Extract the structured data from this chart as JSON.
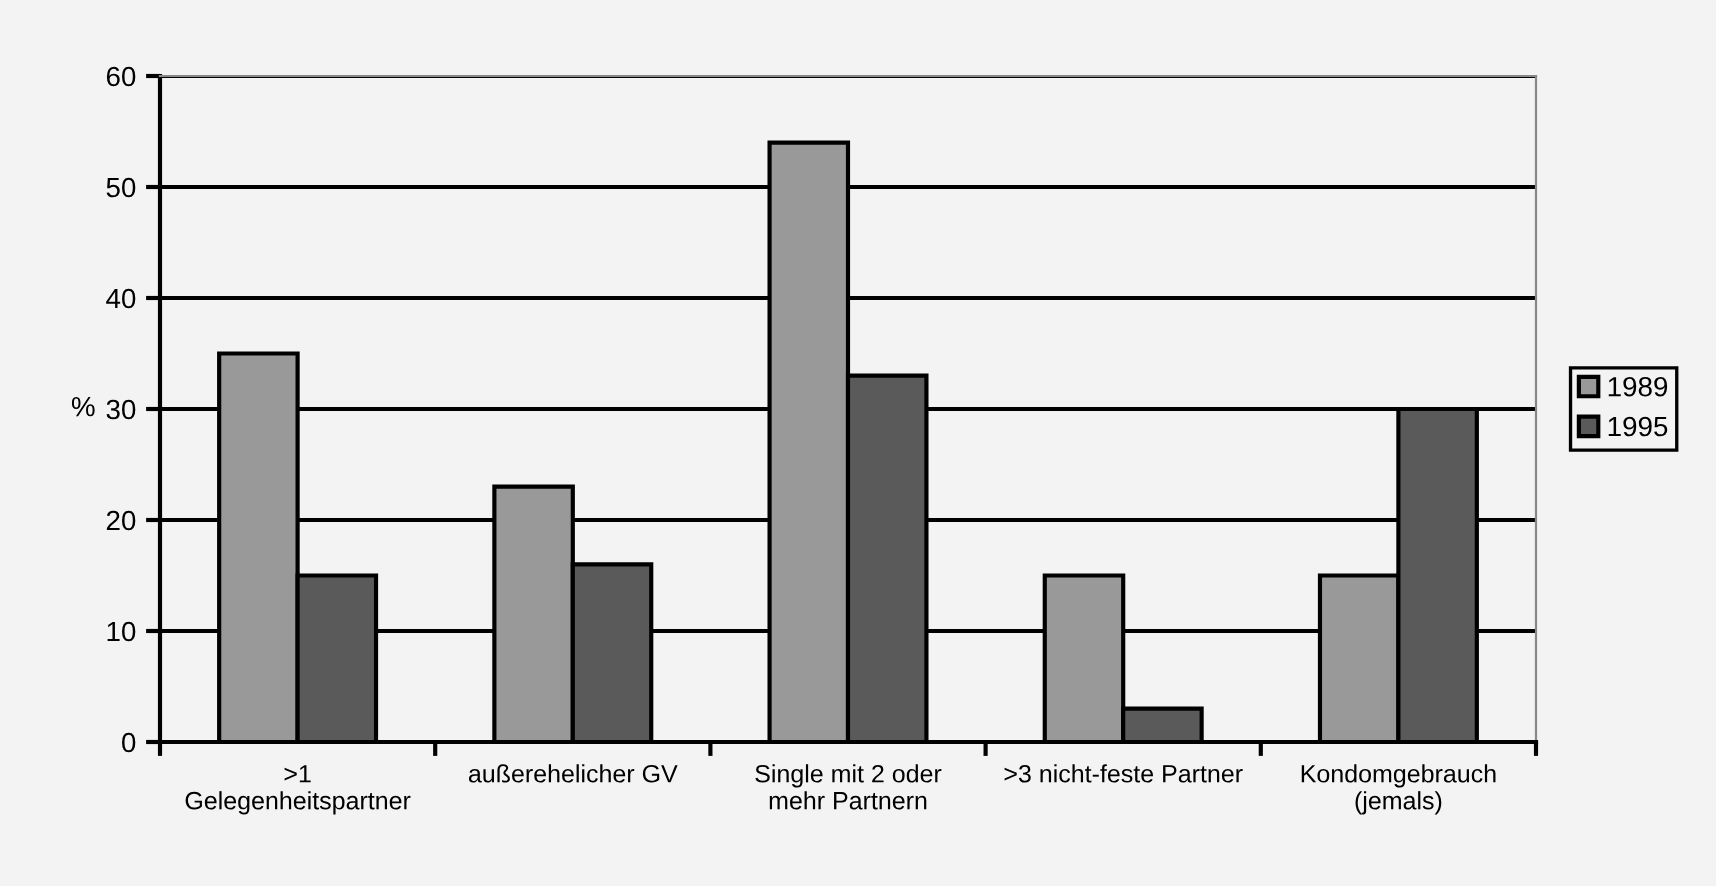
{
  "chart_data": {
    "type": "bar",
    "ylabel": "%",
    "categories": [
      ">1\nGelegenheitspartner",
      "außerehelicher GV",
      "Single mit 2 oder\nmehr Partnern",
      ">3 nicht-feste Partner",
      "Kondomgebrauch\n(jemals)"
    ],
    "series": [
      {
        "name": "1989",
        "color": "#999999",
        "values": [
          35,
          23,
          54,
          15,
          15
        ]
      },
      {
        "name": "1995",
        "color": "#5a5a5a",
        "values": [
          15,
          16,
          33,
          3,
          30
        ]
      }
    ],
    "ylim": [
      0,
      60
    ],
    "yticks": [
      0,
      10,
      20,
      30,
      40,
      50,
      60
    ],
    "grid": "y",
    "legend": "right"
  }
}
